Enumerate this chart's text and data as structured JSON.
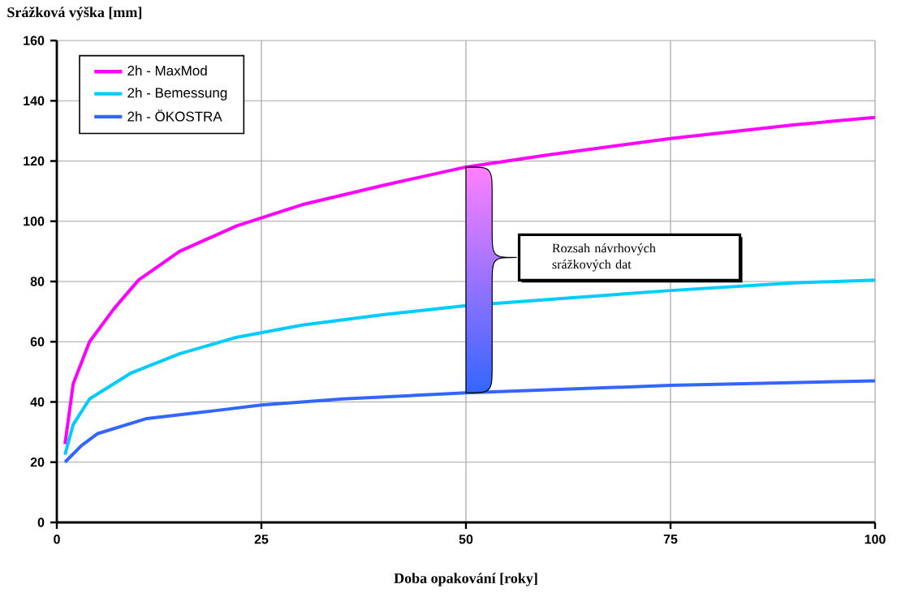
{
  "chart_data": {
    "type": "line",
    "xlabel": "Doba opakování  [roky]",
    "ylabel": "Srážková výška [mm]",
    "series": [
      {
        "name": "2h - MaxMod",
        "color": "#ff00ff",
        "x": [
          1,
          2,
          4,
          7,
          10,
          15,
          22,
          30,
          40,
          50,
          60,
          75,
          90,
          100
        ],
        "values": [
          26,
          46,
          60,
          71,
          80.5,
          90,
          98.5,
          105.5,
          112,
          118,
          122,
          127.5,
          132,
          134.5
        ]
      },
      {
        "name": "2h - Bemessung",
        "color": "#00ccff",
        "x": [
          1,
          2,
          4,
          9,
          15,
          22,
          30,
          40,
          50,
          60,
          75,
          90,
          100
        ],
        "values": [
          22.5,
          32.5,
          41,
          49.5,
          56,
          61.5,
          65.5,
          69,
          72,
          74,
          77,
          79.5,
          80.5
        ]
      },
      {
        "name": "2h - ÖKOSTRA",
        "color": "#3366ff",
        "x": [
          1,
          3,
          5,
          11,
          19,
          25,
          35,
          50,
          75,
          100
        ],
        "values": [
          20,
          25.5,
          29.5,
          34.5,
          37,
          39,
          41,
          43,
          45.5,
          47
        ]
      }
    ],
    "xlim": [
      0,
      100
    ],
    "xticks": [
      0,
      25,
      50,
      75,
      100
    ],
    "ylim": [
      0,
      160
    ],
    "yticks": [
      0,
      20,
      40,
      60,
      80,
      100,
      120,
      140,
      160
    ],
    "grid": true,
    "legend": "top left",
    "marker": "none",
    "line_style": "solid",
    "annotations": [
      "Rozsah návrhových srážkových dat"
    ]
  }
}
